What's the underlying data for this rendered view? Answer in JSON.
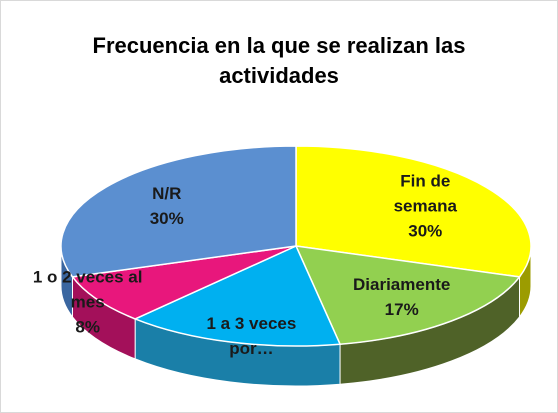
{
  "chart_data": {
    "type": "pie",
    "title": "Frecuencia en la que se realizan las actividades",
    "categories": [
      "Fin de semana",
      "Diariamente",
      "1 a 3 veces por…",
      "1 o 2 veces al mes",
      "N/R"
    ],
    "values": [
      30,
      17,
      15,
      8,
      30
    ],
    "value_labels": [
      "30%",
      "17%",
      null,
      "8%",
      "30%"
    ],
    "colors": [
      "#FFFF00",
      "#92D050",
      "#00B0F0",
      "#E8177C",
      "#5B8FD0"
    ],
    "side_colors": [
      "#9C9C00",
      "#4F6228",
      "#1A7FA8",
      "#A3105A",
      "#3A66A0"
    ]
  }
}
